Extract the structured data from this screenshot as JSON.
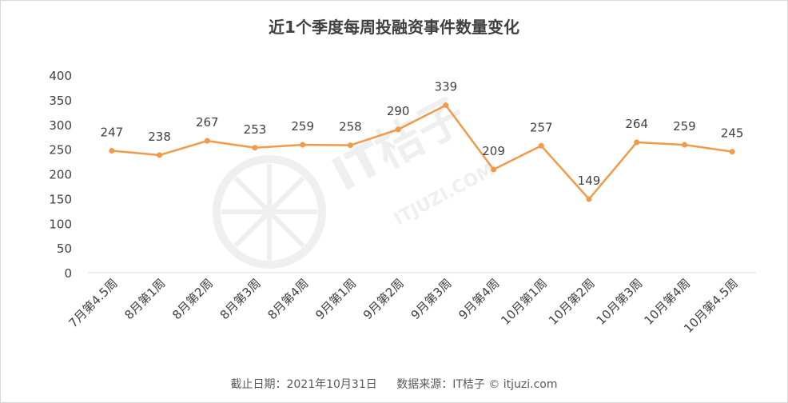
{
  "title": "近1个季度每周投融资事件数量变化",
  "footer": {
    "date_text": "截止日期：2021年10月31日",
    "source_text": "数据来源：IT桔子 © itjuzi.com"
  },
  "watermark": {
    "main": "IT桔子",
    "sub": "ITJUZI.COM"
  },
  "colors": {
    "line": "#f09a4a",
    "grid": "#d9d9d9",
    "text": "#404040",
    "watermark": "#efefef"
  },
  "chart_data": {
    "type": "line",
    "title": "近1个季度每周投融资事件数量变化",
    "categories": [
      "7月第4.5周",
      "8月第1周",
      "8月第2周",
      "8月第3周",
      "8月第4周",
      "9月第1周",
      "9月第2周",
      "9月第3周",
      "9月第4周",
      "10月第1周",
      "10月第2周",
      "10月第3周",
      "10月第4周",
      "10月第4.5周"
    ],
    "values": [
      247,
      238,
      267,
      253,
      259,
      258,
      290,
      339,
      209,
      257,
      149,
      264,
      259,
      245
    ],
    "ylim": [
      0,
      400
    ],
    "yticks": [
      0,
      50,
      100,
      150,
      200,
      250,
      300,
      350,
      400
    ],
    "grid": false,
    "legend": "none"
  }
}
